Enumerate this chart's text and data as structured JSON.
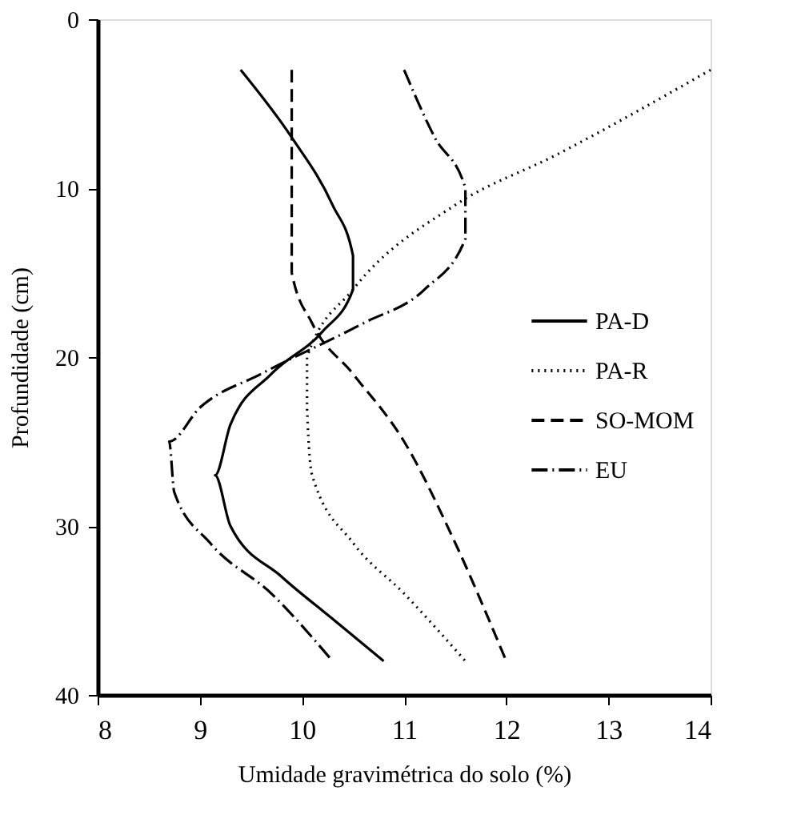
{
  "chart_data": {
    "type": "line",
    "xlabel": "Umidade gravimétrica do solo (%)",
    "ylabel": "Profundidade (cm)",
    "xlim": [
      8,
      14
    ],
    "xticks": [
      8,
      9,
      10,
      11,
      12,
      13,
      14
    ],
    "ylim": [
      40,
      0
    ],
    "yticks": [
      0,
      10,
      20,
      30,
      40
    ],
    "grid": false,
    "legend": "right",
    "marker": "none",
    "series": [
      {
        "name": "PA-D",
        "color": "#000000",
        "line_style": "solid",
        "x": [
          9.4,
          9.9,
          10.3,
          10.5,
          10.5,
          10.2,
          9.7,
          9.3,
          9.15,
          9.3,
          9.8,
          10.3,
          10.8
        ],
        "values": [
          3,
          7,
          11,
          14,
          16,
          18.5,
          21,
          24,
          27,
          30,
          33,
          35.5,
          38
        ]
      },
      {
        "name": "PA-R",
        "color": "#000000",
        "line_style": "dotted",
        "x": [
          14,
          12.5,
          11.5,
          10.5,
          10.05,
          10.05,
          10.1,
          10.5,
          11,
          11.6
        ],
        "values": [
          3,
          8,
          11,
          16,
          20,
          23,
          27,
          31,
          34,
          38
        ]
      },
      {
        "name": "SO-MOM",
        "color": "#000000",
        "line_style": "dashed",
        "x": [
          9.9,
          9.9,
          9.9,
          10.1,
          10.5,
          11,
          11.5,
          12
        ],
        "values": [
          3,
          10,
          15,
          18,
          21,
          25,
          31,
          38
        ]
      },
      {
        "name": "EU",
        "color": "#000000",
        "line_style": "dashdot",
        "x": [
          11,
          11.3,
          11.6,
          11.6,
          11.2,
          10.6,
          9.6,
          9,
          8.7,
          8.75,
          9.1,
          9.7,
          10.3
        ],
        "values": [
          3,
          7,
          10,
          13,
          16,
          18,
          21,
          23,
          25,
          28,
          31,
          34,
          38
        ]
      }
    ]
  }
}
